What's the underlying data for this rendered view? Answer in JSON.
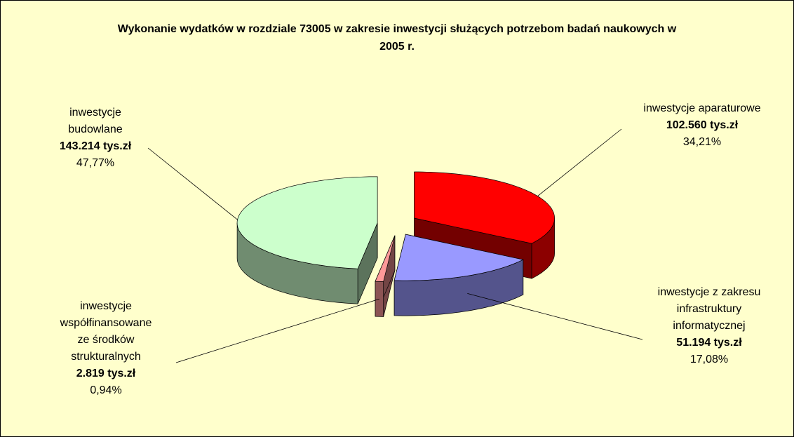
{
  "chart_data": {
    "type": "pie",
    "title": "Wykonanie wydatków w rozdziale 73005 w zakresie inwestycji służących potrzebom badań naukowych w 2005 r.",
    "categories": [
      "inwestycje aparaturowe",
      "inwestycje z zakresu infrastruktury informatycznej",
      "inwestycje współfinansowane ze środków strukturalnych",
      "inwestycje budowlane"
    ],
    "values": [
      34.21,
      17.08,
      0.94,
      47.77
    ],
    "value_labels": [
      "34,21%",
      "17,08%",
      "0,94%",
      "47,77%"
    ],
    "amounts": [
      102560,
      51194,
      2819,
      143214
    ],
    "amount_labels": [
      "102.560 tys.zł",
      "51.194 tys.zł",
      "2.819 tys.zł",
      "143.214 tys.zł"
    ],
    "colors": [
      "#ff0000",
      "#9999ff",
      "#ff9999",
      "#ccffcc"
    ]
  }
}
